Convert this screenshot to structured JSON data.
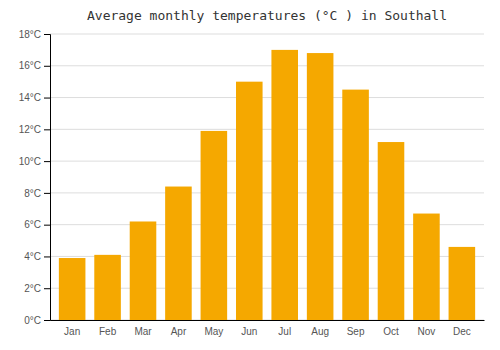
{
  "chart_data": {
    "type": "bar",
    "title": "Average monthly temperatures (°C ) in Southall",
    "categories": [
      "Jan",
      "Feb",
      "Mar",
      "Apr",
      "May",
      "Jun",
      "Jul",
      "Aug",
      "Sep",
      "Oct",
      "Nov",
      "Dec"
    ],
    "values": [
      3.9,
      4.1,
      6.2,
      8.4,
      11.9,
      15.0,
      17.0,
      16.8,
      14.5,
      11.2,
      6.7,
      4.6
    ],
    "color": "#F5A800",
    "ylim": [
      0,
      18
    ],
    "yticks": [
      {
        "value": 0,
        "label": "0°C"
      },
      {
        "value": 2,
        "label": "2°C"
      },
      {
        "value": 4,
        "label": "4°C"
      },
      {
        "value": 6,
        "label": "6°C"
      },
      {
        "value": 8,
        "label": "8°C"
      },
      {
        "value": 10,
        "label": "10°C"
      },
      {
        "value": 12,
        "label": "12°C"
      },
      {
        "value": 14,
        "label": "14°C"
      },
      {
        "value": 16,
        "label": "16°C"
      },
      {
        "value": 18,
        "label": "18°C"
      }
    ],
    "grid": true
  }
}
